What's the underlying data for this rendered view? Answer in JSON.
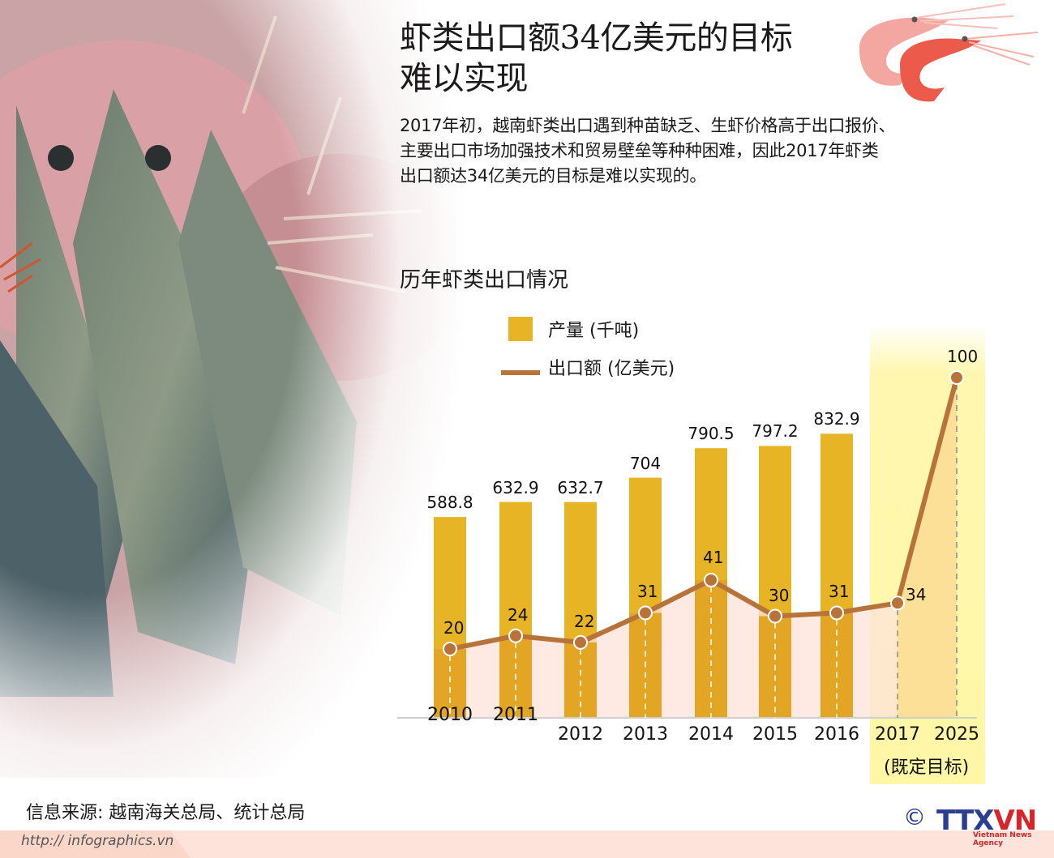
{
  "header": {
    "title_line1": "虾类出口额34亿美元的目标",
    "title_line2": "难以实现"
  },
  "intro": {
    "line1": "2017年初，越南虾类出口遇到种苗缺乏、生虾价格高于出口报价、",
    "line2": "主要出口市场加强技术和贸易壁垒等种种困难，因此2017年虾类",
    "line3": "出口额达34亿美元的目标是难以实现的。"
  },
  "chart": {
    "title": "历年虾类出口情况",
    "legend_bar": "产量 (千吨)",
    "legend_line": "出口额 (亿美元)",
    "goal_note": "(既定目标)"
  },
  "chart_data": {
    "type": "bar",
    "title": "历年虾类出口情况",
    "categories": [
      "2010",
      "2011",
      "2012",
      "2013",
      "2014",
      "2015",
      "2016",
      "2017",
      "2025"
    ],
    "series": [
      {
        "name": "产量 (千吨)",
        "type": "bar",
        "color": "#e6b425",
        "values": [
          588.8,
          632.9,
          632.7,
          704,
          790.5,
          797.2,
          832.9,
          null,
          null
        ]
      },
      {
        "name": "出口额 (亿美元)",
        "type": "line",
        "color": "#b8733b",
        "values": [
          20,
          24,
          22,
          31,
          41,
          30,
          31,
          34,
          100
        ]
      }
    ],
    "annotations": [
      {
        "category_range": [
          "2017",
          "2025"
        ],
        "label": "(既定目标)",
        "highlight": "#fff7a6"
      }
    ],
    "xlabel": "",
    "ylabel": "",
    "grid": false,
    "legend_position": "top-left"
  },
  "colors": {
    "bar": "#e6b425",
    "bar_overlap": "#e3a524",
    "line": "#b8733b",
    "area": "#fde3d9",
    "highlight": "#fff7a6",
    "highlight_area": "#fddc94"
  },
  "footer": {
    "source": "信息来源: 越南海关总局、统计总局",
    "url": "http:// infographics.vn",
    "copyright": "©",
    "logo_main": "TTX",
    "logo_accent": "VN",
    "logo_sub": "Vietnam News Agency"
  }
}
